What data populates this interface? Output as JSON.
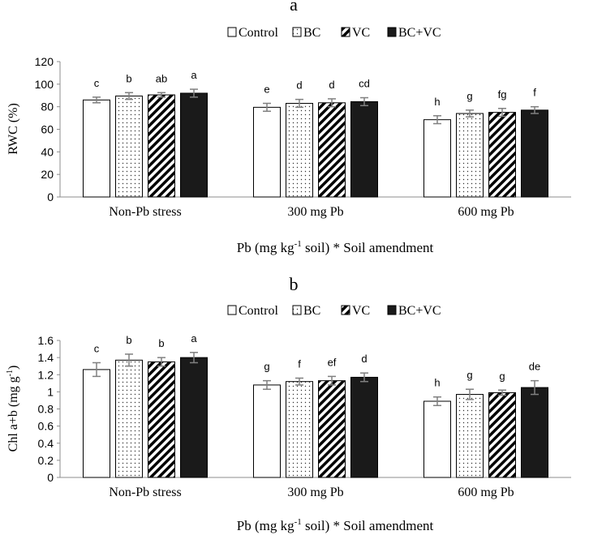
{
  "legend_items": [
    {
      "name": "Control",
      "pattern": "blank"
    },
    {
      "name": "BC",
      "pattern": "dots"
    },
    {
      "name": "VC",
      "pattern": "diag"
    },
    {
      "name": "BC+VC",
      "pattern": "solid"
    }
  ],
  "colors": {
    "axis": "#8c8c8c",
    "solid_fill": "#1a1a1a",
    "error_bar": "#808080",
    "bar_stroke": "#000000"
  },
  "chart_data": [
    {
      "type": "bar",
      "panel_label": "a",
      "ylabel": "RWC (%)",
      "xlabel_parts": {
        "pre": "Pb (mg kg",
        "sup": "-1",
        "post": " soil) * Soil amendment"
      },
      "categories": [
        "Non-Pb stress",
        "300 mg Pb",
        "600 mg Pb"
      ],
      "ylim": [
        0,
        120
      ],
      "yticks": [
        "0",
        "20",
        "40",
        "60",
        "80",
        "100",
        "120"
      ],
      "ytick_values": [
        0,
        20,
        40,
        60,
        80,
        100,
        120
      ],
      "grid": false,
      "legend_position": "top-center",
      "series": [
        {
          "name": "Control",
          "values": [
            86,
            79.5,
            68.5
          ],
          "errors": [
            2.5,
            3.5,
            3.5
          ],
          "letters": [
            "c",
            "e",
            "h"
          ]
        },
        {
          "name": "BC",
          "values": [
            89.5,
            83,
            74
          ],
          "errors": [
            3,
            3.5,
            3
          ],
          "letters": [
            "b",
            "d",
            "g"
          ]
        },
        {
          "name": "VC",
          "values": [
            90.5,
            83.5,
            75
          ],
          "errors": [
            2,
            3.5,
            3.5
          ],
          "letters": [
            "ab",
            "d",
            "fg"
          ]
        },
        {
          "name": "BC+VC",
          "values": [
            92,
            84.5,
            77
          ],
          "errors": [
            3.5,
            3.5,
            3
          ],
          "letters": [
            "a",
            "cd",
            "f"
          ]
        }
      ]
    },
    {
      "type": "bar",
      "panel_label": "b",
      "ylabel_parts": {
        "pre": "Chl a+b (mg g",
        "sup": "-1",
        "post": ")"
      },
      "xlabel_parts": {
        "pre": "Pb (mg kg",
        "sup": "-1",
        "post": " soil) * Soil amendment"
      },
      "categories": [
        "Non-Pb stress",
        "300 mg Pb",
        "600 mg Pb"
      ],
      "ylim": [
        0,
        1.6
      ],
      "yticks": [
        "0",
        "0.2",
        "0.4",
        "0.6",
        "0.8",
        "1",
        "1.2",
        "1.4",
        "1.6"
      ],
      "ytick_values": [
        0,
        0.2,
        0.4,
        0.6,
        0.8,
        1,
        1.2,
        1.4,
        1.6
      ],
      "grid": false,
      "legend_position": "top-center",
      "series": [
        {
          "name": "Control",
          "values": [
            1.26,
            1.08,
            0.89
          ],
          "errors": [
            0.08,
            0.05,
            0.05
          ],
          "letters": [
            "c",
            "g",
            "h"
          ]
        },
        {
          "name": "BC",
          "values": [
            1.37,
            1.12,
            0.97
          ],
          "errors": [
            0.07,
            0.04,
            0.06
          ],
          "letters": [
            "b",
            "f",
            "g"
          ]
        },
        {
          "name": "VC",
          "values": [
            1.35,
            1.13,
            0.99
          ],
          "errors": [
            0.05,
            0.05,
            0.03
          ],
          "letters": [
            "b",
            "ef",
            "g"
          ]
        },
        {
          "name": "BC+VC",
          "values": [
            1.4,
            1.17,
            1.05
          ],
          "errors": [
            0.06,
            0.05,
            0.08
          ],
          "letters": [
            "a",
            "d",
            "de"
          ]
        }
      ]
    }
  ]
}
